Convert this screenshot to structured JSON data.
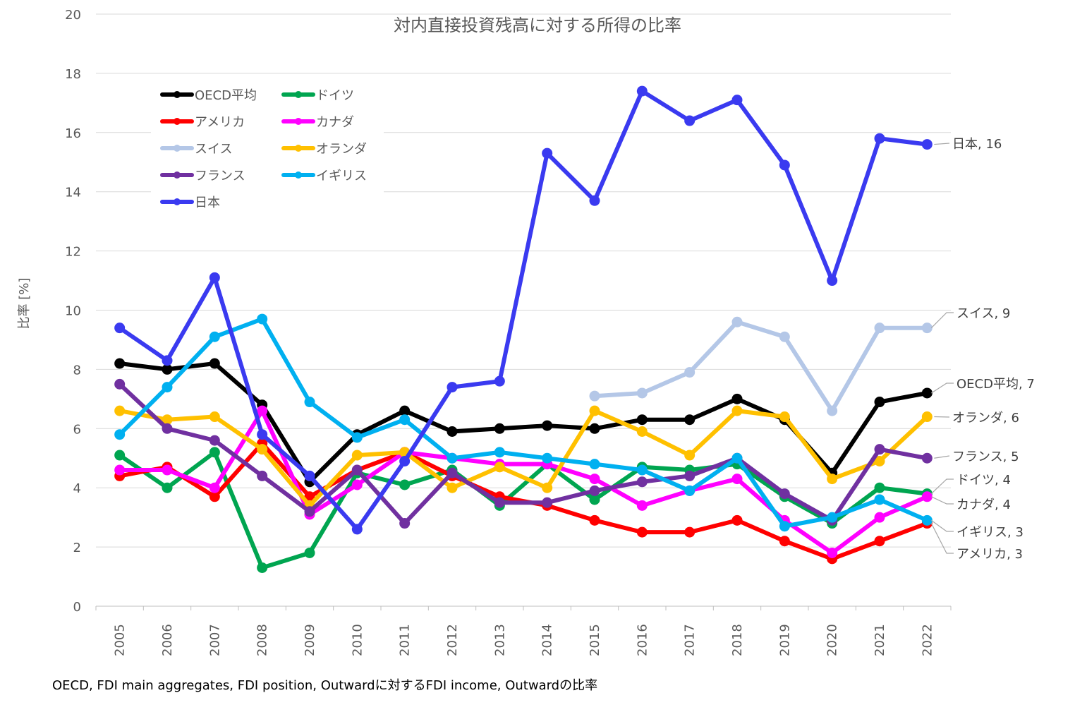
{
  "source_note": "OECD, FDI main aggregates, FDI position, Outwardに対するFDI income, Outwardの比率",
  "chart_data": {
    "type": "line",
    "title": "対内直接投資残高に対する所得の比率",
    "xlabel": "",
    "ylabel": "比率 [%]",
    "ylim": [
      0,
      20
    ],
    "yticks": [
      0,
      2,
      4,
      6,
      8,
      10,
      12,
      14,
      16,
      18,
      20
    ],
    "grid": true,
    "legend_position": "top-left",
    "categories": [
      "2005",
      "2006",
      "2007",
      "2008",
      "2009",
      "2010",
      "2011",
      "2012",
      "2013",
      "2014",
      "2015",
      "2016",
      "2017",
      "2018",
      "2019",
      "2020",
      "2021",
      "2022"
    ],
    "series": [
      {
        "name": "OECD平均",
        "color": "#000000",
        "values": [
          8.2,
          8.0,
          8.2,
          6.8,
          4.2,
          5.8,
          6.6,
          5.9,
          6.0,
          6.1,
          6.0,
          6.3,
          6.3,
          7.0,
          6.3,
          4.5,
          6.9,
          7.2
        ],
        "end_label": "OECD平均, 7"
      },
      {
        "name": "ドイツ",
        "color": "#00A550",
        "values": [
          5.1,
          4.0,
          5.2,
          1.3,
          1.8,
          4.5,
          4.1,
          4.6,
          3.4,
          4.8,
          3.6,
          4.7,
          4.6,
          4.8,
          3.7,
          2.8,
          4.0,
          3.8
        ],
        "end_label": "ドイツ, 4"
      },
      {
        "name": "アメリカ",
        "color": "#FF0000",
        "values": [
          4.4,
          4.7,
          3.7,
          5.5,
          3.7,
          4.6,
          5.2,
          4.4,
          3.7,
          3.4,
          2.9,
          2.5,
          2.5,
          2.9,
          2.2,
          1.6,
          2.2,
          2.8
        ],
        "end_label": "アメリカ, 3"
      },
      {
        "name": "カナダ",
        "color": "#FF00FF",
        "values": [
          4.6,
          4.6,
          4.0,
          6.6,
          3.1,
          4.1,
          5.2,
          5.0,
          4.8,
          4.8,
          4.3,
          3.4,
          3.9,
          4.3,
          2.9,
          1.8,
          3.0,
          3.7
        ],
        "end_label": "カナダ, 4"
      },
      {
        "name": "スイス",
        "color": "#B4C7E7",
        "values": [
          null,
          null,
          null,
          null,
          null,
          null,
          null,
          null,
          null,
          null,
          7.1,
          7.2,
          7.9,
          9.6,
          9.1,
          6.6,
          9.4,
          9.4
        ],
        "end_label": "スイス, 9"
      },
      {
        "name": "オランダ",
        "color": "#FFC000",
        "values": [
          6.6,
          6.3,
          6.4,
          5.3,
          3.4,
          5.1,
          5.2,
          4.0,
          4.7,
          4.0,
          6.6,
          5.9,
          5.1,
          6.6,
          6.4,
          4.3,
          4.9,
          6.4
        ],
        "end_label": "オランダ, 6"
      },
      {
        "name": "フランス",
        "color": "#7030A0",
        "values": [
          7.5,
          6.0,
          5.6,
          4.4,
          3.2,
          4.6,
          2.8,
          4.5,
          3.5,
          3.5,
          3.9,
          4.2,
          4.4,
          5.0,
          3.8,
          2.9,
          5.3,
          5.0
        ],
        "end_label": "フランス, 5"
      },
      {
        "name": "イギリス",
        "color": "#00B0F0",
        "values": [
          5.8,
          7.4,
          9.1,
          9.7,
          6.9,
          5.7,
          6.3,
          5.0,
          5.2,
          5.0,
          4.8,
          4.6,
          3.9,
          5.0,
          2.7,
          3.0,
          3.6,
          2.9
        ],
        "end_label": "イギリス, 3"
      },
      {
        "name": "日本",
        "color": "#3A3AF0",
        "values": [
          9.4,
          8.3,
          11.1,
          5.8,
          4.4,
          2.6,
          4.9,
          7.4,
          7.6,
          15.3,
          13.7,
          17.4,
          16.4,
          17.1,
          14.9,
          11.0,
          15.8,
          15.6
        ],
        "end_label": "日本, 16"
      }
    ]
  }
}
